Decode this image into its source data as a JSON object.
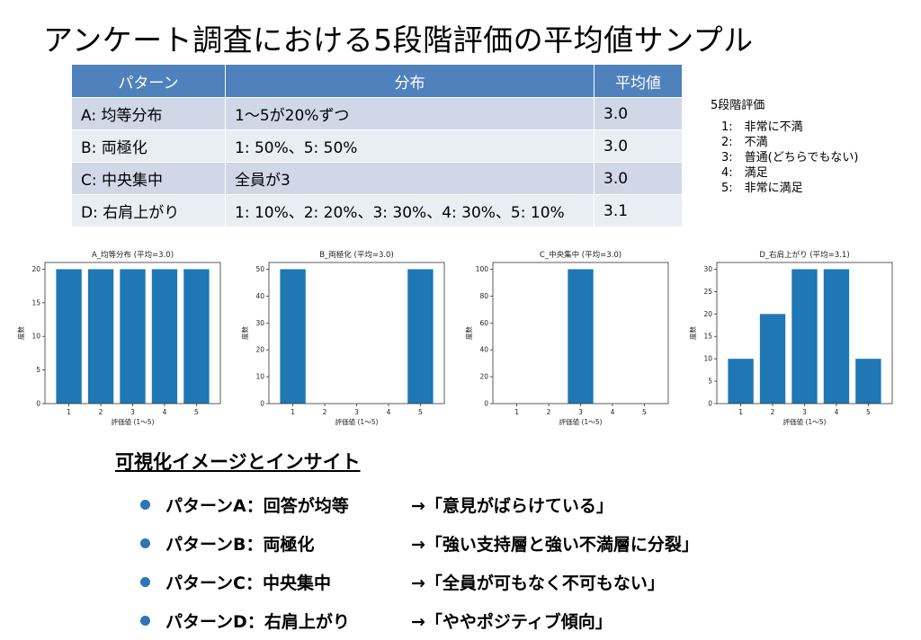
{
  "title": "アンケート調査における5段階評価の平均値サンプル",
  "table": {
    "headers": [
      "パターン",
      "分布",
      "平均値"
    ],
    "rows": [
      {
        "pattern": "A: 均等分布",
        "dist": "1〜5が20%ずつ",
        "avg": "3.0"
      },
      {
        "pattern": "B: 両極化",
        "dist": "1: 50%、5: 50%",
        "avg": "3.0"
      },
      {
        "pattern": "C: 中央集中",
        "dist": "全員が3",
        "avg": "3.0"
      },
      {
        "pattern": "D: 右肩上がり",
        "dist": "1: 10%、2: 20%、3: 30%、4: 30%、5: 10%",
        "avg": "3.1"
      }
    ]
  },
  "scale": {
    "title": "5段階評価",
    "items": [
      "1:　非常に不満",
      "2:　不満",
      "3:　普通(どちらでもない)",
      "4:　満足",
      "5:　非常に満足"
    ]
  },
  "chart_data": [
    {
      "type": "bar",
      "title": "A_均等分布 (平均=3.0)",
      "categories": [
        "1",
        "2",
        "3",
        "4",
        "5"
      ],
      "values": [
        20,
        20,
        20,
        20,
        20
      ],
      "xlabel": "評価値 (1〜5)",
      "ylabel": "度数",
      "ylim": [
        0,
        21
      ],
      "yticks": [
        0,
        5,
        10,
        15,
        20
      ],
      "color": "#1F77B4"
    },
    {
      "type": "bar",
      "title": "B_両極化 (平均=3.0)",
      "categories": [
        "1",
        "2",
        "3",
        "4",
        "5"
      ],
      "values": [
        50,
        0,
        0,
        0,
        50
      ],
      "xlabel": "評価値 (1〜5)",
      "ylabel": "度数",
      "ylim": [
        0,
        52.5
      ],
      "yticks": [
        0,
        10,
        20,
        30,
        40,
        50
      ],
      "color": "#1F77B4"
    },
    {
      "type": "bar",
      "title": "C_中央集中 (平均=3.0)",
      "categories": [
        "1",
        "2",
        "3",
        "4",
        "5"
      ],
      "values": [
        0,
        0,
        100,
        0,
        0
      ],
      "xlabel": "評価値 (1〜5)",
      "ylabel": "度数",
      "ylim": [
        0,
        105
      ],
      "yticks": [
        0,
        20,
        40,
        60,
        80,
        100
      ],
      "color": "#1F77B4"
    },
    {
      "type": "bar",
      "title": "D_右肩上がり (平均=3.1)",
      "categories": [
        "1",
        "2",
        "3",
        "4",
        "5"
      ],
      "values": [
        10,
        20,
        30,
        30,
        10
      ],
      "xlabel": "評価値 (1〜5)",
      "ylabel": "度数",
      "ylim": [
        0,
        31.5
      ],
      "yticks": [
        0,
        5,
        10,
        15,
        20,
        25,
        30
      ],
      "color": "#1F77B4"
    }
  ],
  "insights": {
    "title": "可視化イメージとインサイト",
    "bullet_color": "#2E75B6",
    "items": [
      {
        "label": "パターンA：回答が均等",
        "text": "→「意見がばらけている」"
      },
      {
        "label": "パターンB：両極化",
        "text": "→「強い支持層と強い不満層に分裂」"
      },
      {
        "label": "パターンC：中央集中",
        "text": "→「全員が可もなく不可もない」"
      },
      {
        "label": "パターンD：右肩上がり",
        "text": "→「ややポジティブ傾向」"
      }
    ]
  }
}
